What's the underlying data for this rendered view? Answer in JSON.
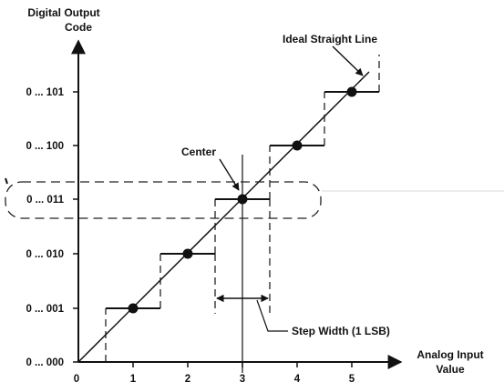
{
  "y_axis_title": [
    "Digital Output",
    "Code"
  ],
  "x_axis_title": [
    "Analog Input",
    "Value"
  ],
  "y_ticks": [
    "0 ... 000",
    "0 ... 001",
    "0 ... 010",
    "0 ... 011",
    "0 ... 100",
    "0 ... 101"
  ],
  "x_ticks": [
    "0",
    "1",
    "2",
    "3",
    "4",
    "5"
  ],
  "annotations": {
    "ideal_line": "Ideal Straight Line",
    "center": "Center",
    "step_width": "Step Width (1 LSB)"
  },
  "colors": {
    "ink": "#111111",
    "background": "#ffffff",
    "highlight": "#222222"
  }
}
